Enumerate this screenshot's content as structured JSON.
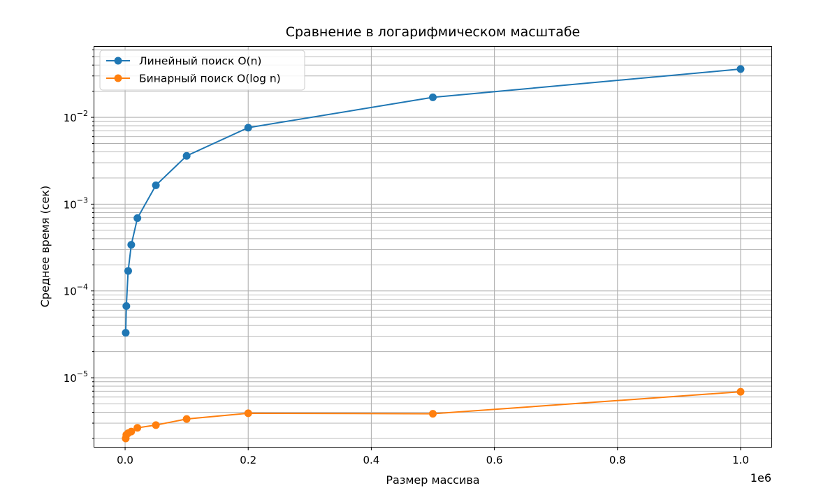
{
  "chart_data": {
    "type": "line",
    "title": "Сравнение в логарифмическом масштабе",
    "xlabel": "Размер массива",
    "ylabel": "Среднее время (сек)",
    "x_offset_label": "1e6",
    "x_scale": "linear",
    "y_scale": "log",
    "xlim": [
      -50000,
      1050000
    ],
    "ylim": [
      1.6e-06,
      0.065
    ],
    "x_ticks": [
      0,
      200000,
      400000,
      600000,
      800000,
      1000000
    ],
    "x_tick_labels": [
      "0.0",
      "0.2",
      "0.4",
      "0.6",
      "0.8",
      "1.0"
    ],
    "y_ticks": [
      1e-05,
      0.0001,
      0.001,
      0.01
    ],
    "y_tick_labels": [
      {
        "base": "10",
        "exp": "−5"
      },
      {
        "base": "10",
        "exp": "−4"
      },
      {
        "base": "10",
        "exp": "−3"
      },
      {
        "base": "10",
        "exp": "−2"
      }
    ],
    "grid": true,
    "grid_minor_y": true,
    "legend_position": "upper-left",
    "x": [
      1000,
      2000,
      5000,
      10000,
      20000,
      50000,
      100000,
      200000,
      500000,
      1000000
    ],
    "series": [
      {
        "name": "Линейный поиск O(n)",
        "color": "#1f77b4",
        "values": [
          3.3e-05,
          6.7e-05,
          0.00017,
          0.00034,
          0.00069,
          0.00165,
          0.0036,
          0.0076,
          0.017,
          0.036
        ]
      },
      {
        "name": "Бинарный поиск O(log n)",
        "color": "#ff7f0e",
        "values": [
          2e-06,
          2.2e-06,
          2.3e-06,
          2.4e-06,
          2.65e-06,
          2.85e-06,
          3.35e-06,
          3.9e-06,
          3.85e-06,
          6.9e-06
        ]
      }
    ]
  }
}
